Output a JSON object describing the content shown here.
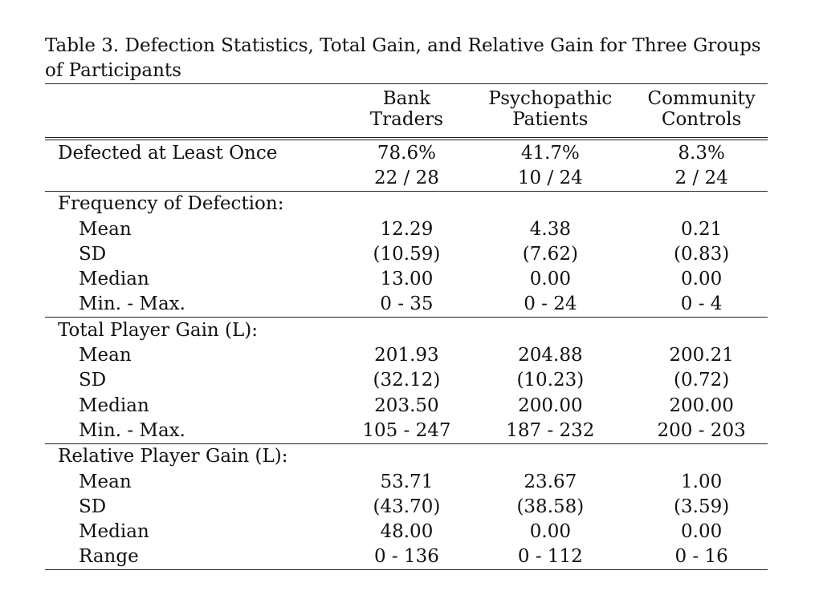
{
  "caption": "Table 3. Defection Statistics, Total Gain, and Relative Gain for Three Groups of Participants",
  "headers": [
    {
      "line1": "Bank",
      "line2": "Traders"
    },
    {
      "line1": "Psychopathic",
      "line2": "Patients"
    },
    {
      "line1": "Community",
      "line2": "Controls"
    }
  ],
  "defected": {
    "label": "Defected at Least Once",
    "percent": [
      "78.6%",
      "41.7%",
      "8.3%"
    ],
    "counts": [
      "22 / 28",
      "10 / 24",
      "2 / 24"
    ]
  },
  "sections": [
    {
      "title": "Frequency of Defection:",
      "rows": [
        {
          "label": "Mean",
          "values": [
            "12.29",
            "4.38",
            "0.21"
          ]
        },
        {
          "label": "SD",
          "values": [
            "(10.59)",
            "(7.62)",
            "(0.83)"
          ]
        },
        {
          "label": "Median",
          "values": [
            "13.00",
            "0.00",
            "0.00"
          ]
        },
        {
          "label": "Min. - Max.",
          "values": [
            "0 - 35",
            "0 - 24",
            "0 - 4"
          ]
        }
      ]
    },
    {
      "title": "Total Player Gain (L):",
      "rows": [
        {
          "label": "Mean",
          "values": [
            "201.93",
            "204.88",
            "200.21"
          ]
        },
        {
          "label": "SD",
          "values": [
            "(32.12)",
            "(10.23)",
            "(0.72)"
          ]
        },
        {
          "label": "Median",
          "values": [
            "203.50",
            "200.00",
            "200.00"
          ]
        },
        {
          "label": "Min. - Max.",
          "values": [
            "105 - 247",
            "187 - 232",
            "200 - 203"
          ]
        }
      ]
    },
    {
      "title": "Relative Player Gain (L):",
      "rows": [
        {
          "label": "Mean",
          "values": [
            "53.71",
            "23.67",
            "1.00"
          ]
        },
        {
          "label": "SD",
          "values": [
            "(43.70)",
            "(38.58)",
            "(3.59)"
          ]
        },
        {
          "label": "Median",
          "values": [
            "48.00",
            "0.00",
            "0.00"
          ]
        },
        {
          "label": "Range",
          "values": [
            "0 - 136",
            "0 - 112",
            "0 - 16"
          ]
        }
      ]
    }
  ]
}
